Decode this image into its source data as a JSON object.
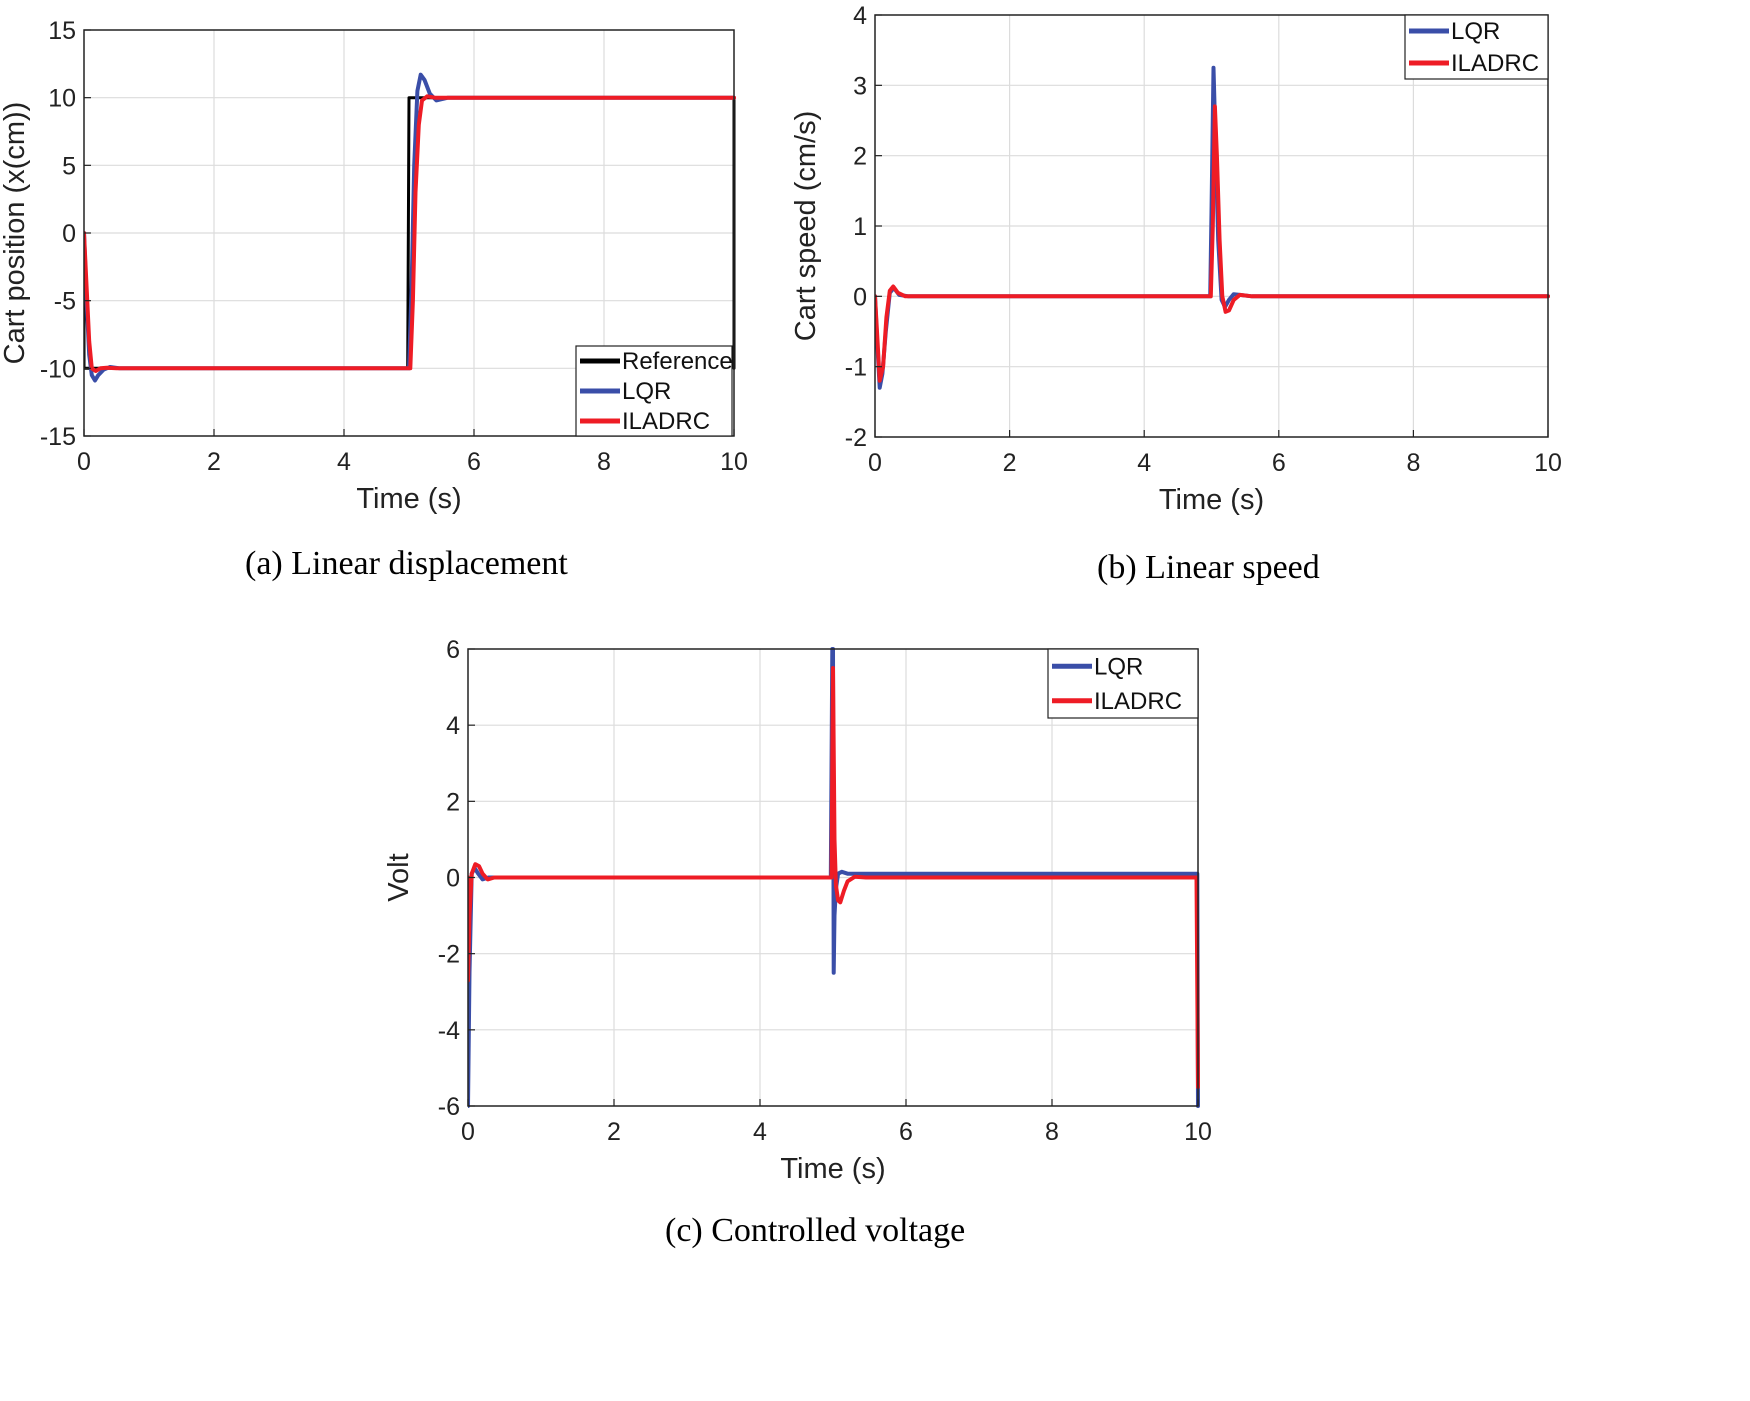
{
  "colors": {
    "reference": "#000000",
    "lqr": "#3a4ea8",
    "iladrc": "#ee1c25",
    "grid": "#dcdcdc"
  },
  "charts": {
    "a": {
      "caption": "(a)  Linear displacement",
      "chart_data": {
        "type": "line",
        "title": "",
        "xlabel": "Time (s)",
        "ylabel": "Cart position (x(cm))",
        "xlim": [
          0,
          10
        ],
        "ylim": [
          -15,
          15
        ],
        "xticks": [
          0,
          2,
          4,
          6,
          8,
          10
        ],
        "yticks": [
          -15,
          -10,
          -5,
          0,
          5,
          10,
          15
        ],
        "xtick_labels": [
          "0",
          "2",
          "4",
          "6",
          "8",
          "10"
        ],
        "ytick_labels": [
          "-15",
          "-10",
          "-5",
          "0",
          "5",
          "10",
          "15"
        ],
        "grid": true,
        "legend": "bottom-right",
        "series": [
          {
            "name": "Reference",
            "color": "#000000",
            "x": [
              0,
              0,
              0.02,
              4.98,
              5.0,
              9.97,
              10.0,
              10.0
            ],
            "y": [
              0,
              -10,
              -10,
              -10,
              10,
              10,
              10,
              -10
            ]
          },
          {
            "name": "LQR",
            "color": "#3a4ea8",
            "x": [
              0,
              0.04,
              0.08,
              0.12,
              0.17,
              0.22,
              0.3,
              0.4,
              0.55,
              5.0,
              5.04,
              5.08,
              5.13,
              5.18,
              5.24,
              5.32,
              5.42,
              5.6,
              10.0
            ],
            "y": [
              0,
              -5,
              -9,
              -10.5,
              -10.9,
              -10.5,
              -10.1,
              -9.9,
              -10,
              -10,
              -4,
              5,
              10.5,
              11.7,
              11.3,
              10.3,
              9.8,
              10,
              10
            ]
          },
          {
            "name": "ILADRC",
            "color": "#ee1c25",
            "x": [
              0,
              0.04,
              0.08,
              0.12,
              0.18,
              0.25,
              0.35,
              0.5,
              5.02,
              5.06,
              5.1,
              5.15,
              5.2,
              5.28,
              5.4,
              5.55,
              10.0
            ],
            "y": [
              0,
              -4,
              -8,
              -10,
              -10.2,
              -10,
              -9.95,
              -10,
              -10,
              -5,
              3,
              8,
              9.8,
              10.1,
              10,
              10,
              10
            ]
          }
        ]
      }
    },
    "b": {
      "caption": "(b) Linear speed",
      "chart_data": {
        "type": "line",
        "title": "",
        "xlabel": "Time (s)",
        "ylabel": "Cart speed (cm/s)",
        "xlim": [
          0,
          10
        ],
        "ylim": [
          -2,
          4
        ],
        "xticks": [
          0,
          2,
          4,
          6,
          8,
          10
        ],
        "yticks": [
          -2,
          -1,
          0,
          1,
          2,
          3,
          4
        ],
        "xtick_labels": [
          "0",
          "2",
          "4",
          "6",
          "8",
          "10"
        ],
        "ytick_labels": [
          "-2",
          "-1",
          "0",
          "1",
          "2",
          "3",
          "4"
        ],
        "grid": true,
        "legend": "top-right",
        "series": [
          {
            "name": "LQR",
            "color": "#3a4ea8",
            "x": [
              0,
              0.03,
              0.07,
              0.11,
              0.16,
              0.22,
              0.28,
              0.36,
              0.5,
              4.98,
              5.0,
              5.03,
              5.06,
              5.1,
              5.15,
              5.2,
              5.26,
              5.33,
              5.42,
              5.6,
              10.0
            ],
            "y": [
              0,
              -0.6,
              -1.3,
              -1.1,
              -0.5,
              0.05,
              0.12,
              0.02,
              0,
              0,
              1.2,
              3.25,
              2.2,
              0.8,
              -0.05,
              -0.15,
              -0.05,
              0.03,
              0.02,
              0,
              0
            ]
          },
          {
            "name": "ILADRC",
            "color": "#ee1c25",
            "x": [
              0,
              0.03,
              0.07,
              0.12,
              0.17,
              0.22,
              0.27,
              0.34,
              0.45,
              4.99,
              5.02,
              5.05,
              5.08,
              5.12,
              5.16,
              5.21,
              5.26,
              5.33,
              5.42,
              5.6,
              10.0
            ],
            "y": [
              0,
              -0.5,
              -1.2,
              -1.0,
              -0.3,
              0.08,
              0.14,
              0.05,
              0,
              0,
              1.0,
              2.7,
              2.0,
              0.8,
              0.0,
              -0.22,
              -0.2,
              -0.05,
              0.02,
              0,
              0
            ]
          }
        ]
      }
    },
    "c": {
      "caption": "(c) Controlled voltage",
      "chart_data": {
        "type": "line",
        "title": "",
        "xlabel": "Time (s)",
        "ylabel": "Volt",
        "xlim": [
          0,
          10
        ],
        "ylim": [
          -6,
          6
        ],
        "xticks": [
          0,
          2,
          4,
          6,
          8,
          10
        ],
        "yticks": [
          -6,
          -4,
          -2,
          0,
          2,
          4,
          6
        ],
        "xtick_labels": [
          "0",
          "2",
          "4",
          "6",
          "8",
          "10"
        ],
        "ytick_labels": [
          "-6",
          "-4",
          "-2",
          "0",
          "2",
          "4",
          "6"
        ],
        "grid": true,
        "legend": "top-right",
        "series": [
          {
            "name": "LQR",
            "color": "#3a4ea8",
            "x": [
              0,
              0.0,
              0.02,
              0.05,
              0.09,
              0.14,
              0.2,
              0.28,
              0.4,
              4.97,
              4.99,
              5.0,
              5.01,
              5.02,
              5.04,
              5.07,
              5.12,
              5.2,
              5.35,
              9.97,
              9.99,
              10.0
            ],
            "y": [
              0,
              -6,
              -2.5,
              0.1,
              0.25,
              0.1,
              -0.05,
              0,
              0,
              0,
              6,
              6,
              -2.5,
              -1.0,
              -0.3,
              0.1,
              0.15,
              0.1,
              0.1,
              0.1,
              0.1,
              -6
            ]
          },
          {
            "name": "ILADRC",
            "color": "#ee1c25",
            "x": [
              0,
              0.0,
              0.02,
              0.05,
              0.1,
              0.15,
              0.2,
              0.27,
              0.36,
              0.5,
              4.98,
              5.0,
              5.02,
              5.04,
              5.07,
              5.1,
              5.15,
              5.2,
              5.3,
              5.45,
              9.98,
              10.0
            ],
            "y": [
              0,
              -2.7,
              -1.0,
              0.1,
              0.35,
              0.3,
              0.1,
              -0.05,
              0,
              0,
              0,
              5.5,
              1.0,
              -0.2,
              -0.6,
              -0.65,
              -0.35,
              -0.1,
              0.02,
              0,
              0,
              -5.5
            ]
          }
        ]
      }
    }
  }
}
